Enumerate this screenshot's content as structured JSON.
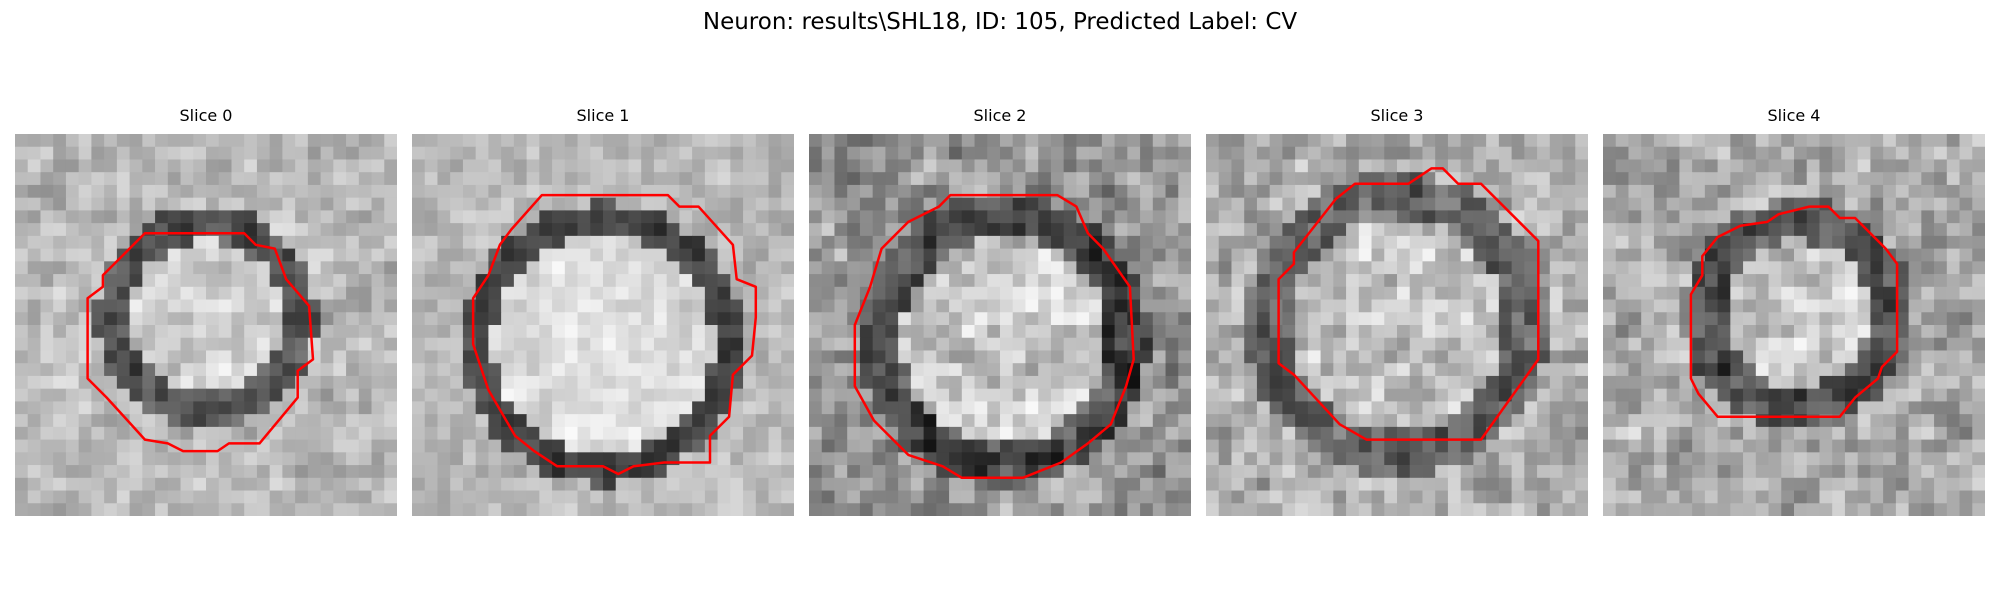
{
  "figure": {
    "title": "Neuron: results\\SHL18, ID: 105, Predicted Label: CV"
  },
  "slices": [
    {
      "title": "Slice 0"
    },
    {
      "title": "Slice 1"
    },
    {
      "title": "Slice 2"
    },
    {
      "title": "Slice 3"
    },
    {
      "title": "Slice 4"
    }
  ],
  "colors": {
    "contour": "#ff0000",
    "background": "#ffffff"
  }
}
